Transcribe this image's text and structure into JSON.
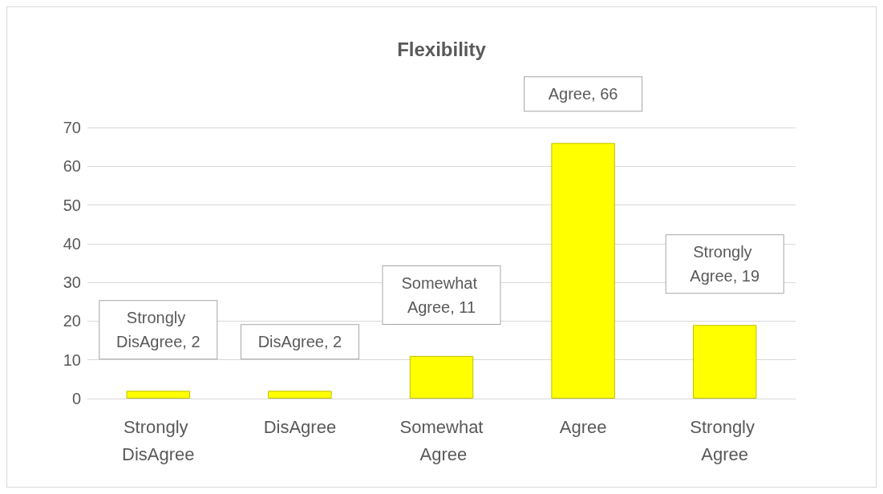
{
  "chart_data": {
    "type": "bar",
    "title": "Flexibility",
    "categories": [
      "Strongly DisAgree",
      "DisAgree",
      "Somewhat Agree",
      "Agree",
      "Strongly Agree"
    ],
    "values": [
      2,
      2,
      11,
      66,
      19
    ],
    "value_labels": [
      "Strongly DisAgree, 2",
      "DisAgree, 2",
      "Somewhat Agree, 11",
      "Agree, 66",
      "Strongly Agree, 19"
    ],
    "color": "#ffff00",
    "ylim": [
      0,
      70
    ],
    "yticks": [
      0,
      10,
      20,
      30,
      40,
      50,
      60,
      70
    ],
    "grid": "y"
  }
}
